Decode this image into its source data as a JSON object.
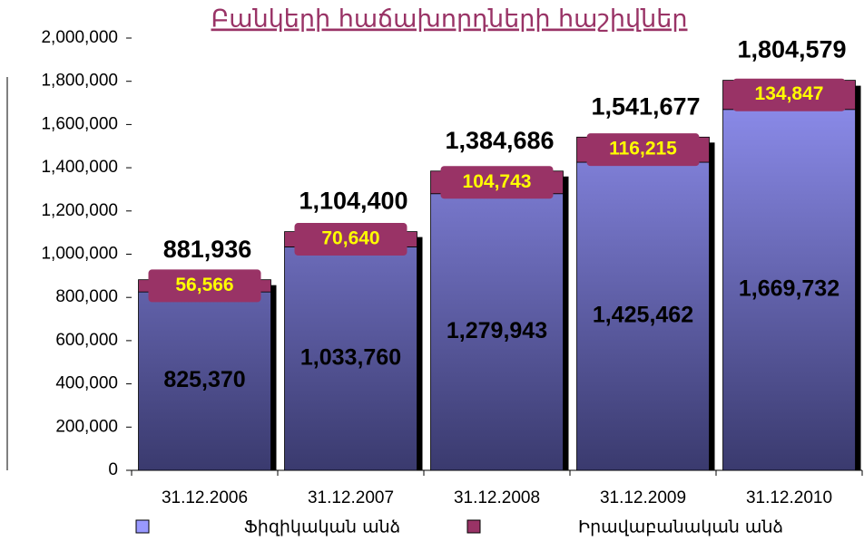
{
  "chart_data": {
    "type": "stacked_bar",
    "title": "Բանկերի հաճախորդների հաշիվներ",
    "categories": [
      "31.12.2006",
      "31.12.2007",
      "31.12.2008",
      "31.12.2009",
      "31.12.2010"
    ],
    "series": [
      {
        "name": "Ֆիզիկական անձ",
        "color": "#9999ff",
        "values": [
          825370,
          1033760,
          1279943,
          1425462,
          1669732
        ],
        "value_labels": [
          "825,370",
          "1,033,760",
          "1,279,943",
          "1,425,462",
          "1,669,732"
        ]
      },
      {
        "name": "Իրավաբանական անձ",
        "color": "#993366",
        "values": [
          56566,
          70640,
          104743,
          116215,
          134847
        ],
        "value_labels": [
          "56,566",
          "70,640",
          "104,743",
          "116,215",
          "134,847"
        ]
      }
    ],
    "total_labels": [
      "881,936",
      "1,104,400",
      "1,384,686",
      "1,541,677",
      "1,804,579"
    ],
    "ylim": [
      0,
      2000000
    ],
    "yticks": [
      0,
      {
        "value": 200000,
        "label": "200,000"
      },
      {
        "value": 400000,
        "label": "400,000"
      },
      {
        "value": 600000,
        "label": "600,000"
      },
      {
        "value": 800000,
        "label": "800,000"
      },
      {
        "value": 1000000,
        "label": "1,000,000"
      },
      {
        "value": 1200000,
        "label": "1,200,000"
      },
      {
        "value": 1400000,
        "label": "1,400,000"
      },
      {
        "value": 1600000,
        "label": "1,600,000"
      },
      {
        "value": 1800000,
        "label": "1,800,000"
      },
      {
        "value": 2000000,
        "label": "2,000,000"
      }
    ]
  }
}
